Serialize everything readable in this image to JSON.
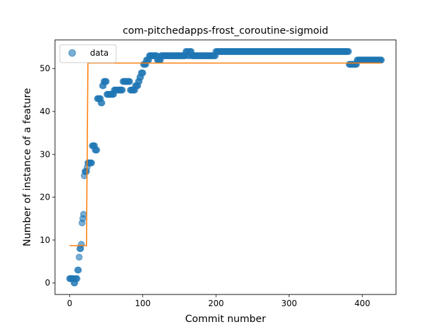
{
  "chart_data": {
    "type": "scatter",
    "title": "com-pitchedapps-frost_coroutine-sigmoid",
    "xlabel": "Commit number",
    "ylabel": "Number of instance of a feature",
    "xlim": [
      -20,
      446
    ],
    "ylim": [
      -2.7,
      56.7
    ],
    "xticks": [
      0,
      100,
      200,
      300,
      400
    ],
    "yticks": [
      0,
      10,
      20,
      30,
      40,
      50
    ],
    "grid": false,
    "legend": {
      "position": "upper-left",
      "entries": [
        "data"
      ]
    },
    "colors": {
      "data": "#1f77b4",
      "fit": "#ff7f0e"
    },
    "series": [
      {
        "name": "data",
        "kind": "scatter",
        "segments": [
          {
            "from": 0,
            "to": 5,
            "value": 1
          },
          {
            "from": 6,
            "to": 7,
            "value": 0
          },
          {
            "from": 8,
            "to": 10,
            "value": 1
          },
          {
            "from": 11,
            "to": 12,
            "value": 3
          },
          {
            "from": 13,
            "to": 13,
            "value": 6
          },
          {
            "from": 14,
            "to": 15,
            "value": 8
          },
          {
            "from": 16,
            "to": 16,
            "value": 9
          },
          {
            "from": 17,
            "to": 17,
            "value": 14
          },
          {
            "from": 18,
            "to": 18,
            "value": 15
          },
          {
            "from": 19,
            "to": 19,
            "value": 16
          },
          {
            "from": 20,
            "to": 20,
            "value": 25
          },
          {
            "from": 21,
            "to": 23,
            "value": 26
          },
          {
            "from": 24,
            "to": 24,
            "value": 27
          },
          {
            "from": 25,
            "to": 30,
            "value": 28
          },
          {
            "from": 31,
            "to": 34,
            "value": 32
          },
          {
            "from": 35,
            "to": 37,
            "value": 31
          },
          {
            "from": 38,
            "to": 42,
            "value": 43
          },
          {
            "from": 43,
            "to": 44,
            "value": 42
          },
          {
            "from": 45,
            "to": 46,
            "value": 46
          },
          {
            "from": 47,
            "to": 50,
            "value": 47
          },
          {
            "from": 51,
            "to": 60,
            "value": 44
          },
          {
            "from": 61,
            "to": 72,
            "value": 45
          },
          {
            "from": 73,
            "to": 82,
            "value": 47
          },
          {
            "from": 83,
            "to": 89,
            "value": 45
          },
          {
            "from": 90,
            "to": 93,
            "value": 46
          },
          {
            "from": 94,
            "to": 95,
            "value": 47
          },
          {
            "from": 96,
            "to": 97,
            "value": 48
          },
          {
            "from": 98,
            "to": 100,
            "value": 49
          },
          {
            "from": 101,
            "to": 104,
            "value": 51
          },
          {
            "from": 105,
            "to": 108,
            "value": 52
          },
          {
            "from": 109,
            "to": 119,
            "value": 53
          },
          {
            "from": 120,
            "to": 124,
            "value": 52
          },
          {
            "from": 125,
            "to": 158,
            "value": 53
          },
          {
            "from": 159,
            "to": 161,
            "value": 54
          },
          {
            "from": 162,
            "to": 163,
            "value": 53
          },
          {
            "from": 164,
            "to": 166,
            "value": 54
          },
          {
            "from": 167,
            "to": 199,
            "value": 53
          },
          {
            "from": 200,
            "to": 381,
            "value": 54
          },
          {
            "from": 382,
            "to": 392,
            "value": 51
          },
          {
            "from": 393,
            "to": 426,
            "value": 52
          }
        ]
      },
      {
        "kind": "line",
        "x": [
          0,
          23,
          25,
          426
        ],
        "y": [
          8.7,
          8.7,
          51.3,
          51.3
        ]
      }
    ]
  }
}
